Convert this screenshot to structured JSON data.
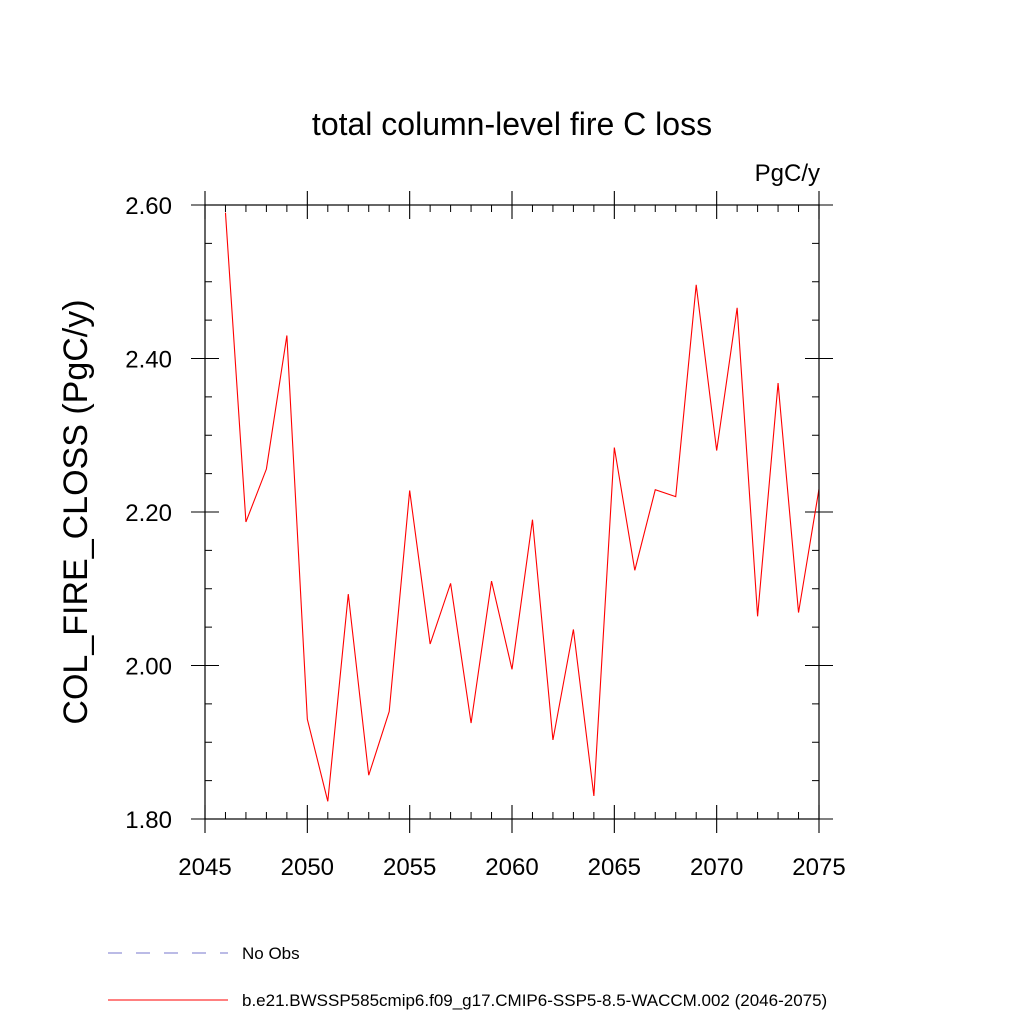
{
  "chart_data": {
    "type": "line",
    "title": "total column-level fire C loss",
    "units_label": "PgC/y",
    "xlabel": "",
    "ylabel": "COL_FIRE_CLOSS  (PgC/y)",
    "xlim": [
      2045,
      2075
    ],
    "ylim": [
      1.8,
      2.6
    ],
    "x_ticks": [
      2045,
      2050,
      2055,
      2060,
      2065,
      2070,
      2075
    ],
    "x_tick_labels": [
      "2045",
      "2050",
      "2055",
      "2060",
      "2065",
      "2070",
      "2075"
    ],
    "y_ticks": [
      1.8,
      2.0,
      2.2,
      2.4,
      2.6
    ],
    "y_tick_labels": [
      "1.80",
      "2.00",
      "2.20",
      "2.40",
      "2.60"
    ],
    "y_minor_step": 0.05,
    "x_minor_step": 1,
    "grid": false,
    "legend_position": "bottom",
    "series": [
      {
        "name": "No Obs",
        "style": "dashed",
        "color": "#7777cc",
        "x": [],
        "values": []
      },
      {
        "name": "b.e21.BWSSP585cmip6.f09_g17.CMIP6-SSP5-8.5-WACCM.002 (2046-2075)",
        "style": "solid",
        "color": "#ff0000",
        "x": [
          2046,
          2047,
          2048,
          2049,
          2050,
          2051,
          2052,
          2053,
          2054,
          2055,
          2056,
          2057,
          2058,
          2059,
          2060,
          2061,
          2062,
          2063,
          2064,
          2065,
          2066,
          2067,
          2068,
          2069,
          2070,
          2071,
          2072,
          2073,
          2074,
          2075
        ],
        "values": [
          2.59,
          2.187,
          2.256,
          2.43,
          1.93,
          1.823,
          2.093,
          1.857,
          1.94,
          2.228,
          2.028,
          2.107,
          1.925,
          2.11,
          1.995,
          2.19,
          1.903,
          2.047,
          1.83,
          2.284,
          2.124,
          2.229,
          2.22,
          2.496,
          2.28,
          2.466,
          2.064,
          2.368,
          2.069,
          2.23
        ]
      }
    ]
  }
}
